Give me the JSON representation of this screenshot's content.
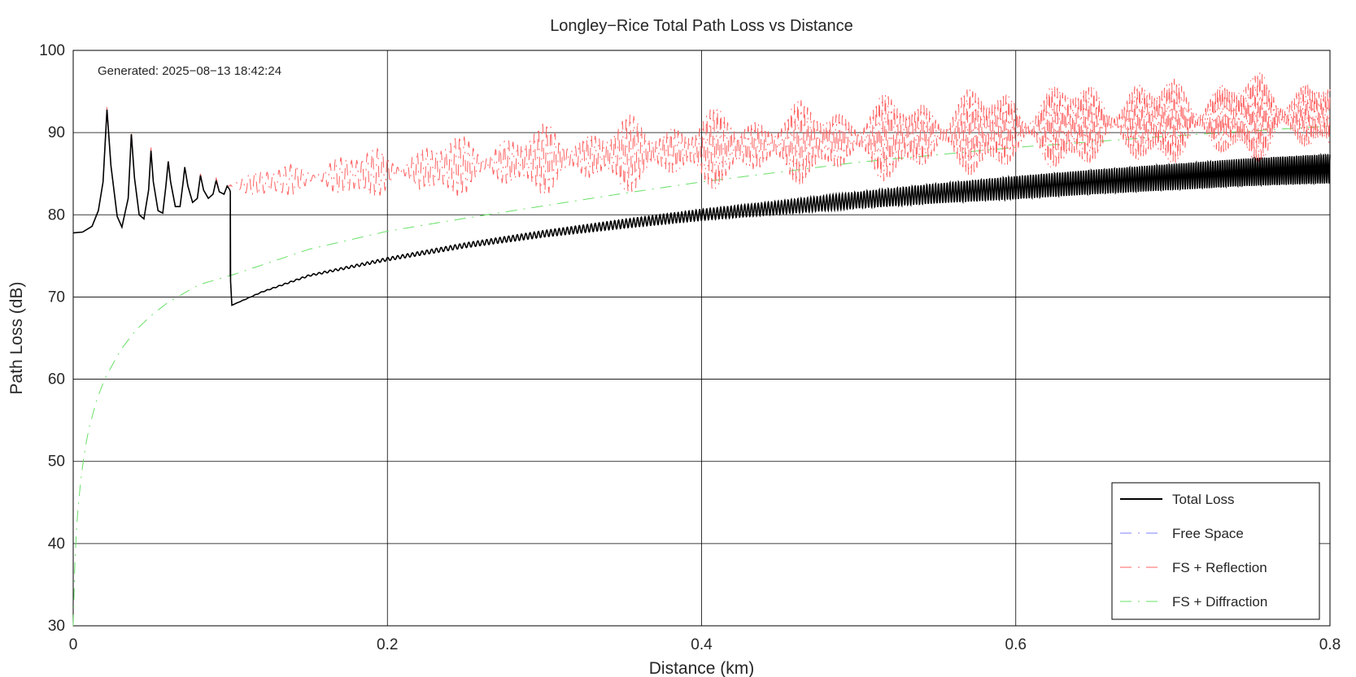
{
  "chart_data": {
    "type": "line",
    "title": "Longley−Rice Total Path Loss vs Distance",
    "xlabel": "Distance (km)",
    "ylabel": "Path Loss (dB)",
    "xlim": [
      0,
      0.8
    ],
    "ylim": [
      30,
      100
    ],
    "x_ticks": [
      0,
      0.2,
      0.4,
      0.6,
      0.8
    ],
    "x_tick_labels": [
      "0",
      "0.2",
      "0.4",
      "0.6",
      "0.8"
    ],
    "y_ticks": [
      30,
      40,
      50,
      60,
      70,
      80,
      90,
      100
    ],
    "y_tick_labels": [
      "30",
      "40",
      "50",
      "60",
      "70",
      "80",
      "90",
      "100"
    ],
    "grid": true,
    "legend_position": "bottom-right",
    "annotation": "Generated: 2025−08−13 18:42:24",
    "series": [
      {
        "name": "Total Loss",
        "color": "#000000",
        "style": "solid",
        "points": [
          [
            0,
            77.8
          ],
          [
            0.006,
            77.9
          ],
          [
            0.012,
            78.6
          ],
          [
            0.016,
            80.5
          ],
          [
            0.019,
            84
          ],
          [
            0.0215,
            92.8
          ],
          [
            0.024,
            86
          ],
          [
            0.028,
            79.8
          ],
          [
            0.031,
            78.5
          ],
          [
            0.035,
            82
          ],
          [
            0.037,
            89.8
          ],
          [
            0.039,
            84.5
          ],
          [
            0.042,
            80
          ],
          [
            0.045,
            79.5
          ],
          [
            0.048,
            83
          ],
          [
            0.0495,
            87.8
          ],
          [
            0.051,
            84
          ],
          [
            0.054,
            80.5
          ],
          [
            0.057,
            80.2
          ],
          [
            0.059,
            83.5
          ],
          [
            0.0605,
            86.5
          ],
          [
            0.062,
            84
          ],
          [
            0.065,
            81
          ],
          [
            0.068,
            81
          ],
          [
            0.07,
            84
          ],
          [
            0.071,
            85.8
          ],
          [
            0.073,
            83.5
          ],
          [
            0.076,
            81.5
          ],
          [
            0.079,
            82
          ],
          [
            0.081,
            84.8
          ],
          [
            0.083,
            83
          ],
          [
            0.086,
            82
          ],
          [
            0.089,
            82.5
          ],
          [
            0.091,
            84.2
          ],
          [
            0.093,
            82.8
          ],
          [
            0.096,
            82.5
          ],
          [
            0.098,
            83.5
          ],
          [
            0.0995,
            83.1
          ],
          [
            0.1,
            82.8
          ],
          [
            0.1,
            72.5
          ],
          [
            0.101,
            69
          ],
          [
            0.12,
            70.6
          ],
          [
            0.15,
            72.6
          ],
          [
            0.2,
            74.6
          ],
          [
            0.25,
            76.3
          ],
          [
            0.3,
            77.7
          ],
          [
            0.35,
            78.9
          ],
          [
            0.4,
            80.0
          ],
          [
            0.45,
            80.9
          ],
          [
            0.5,
            81.8
          ],
          [
            0.55,
            82.6
          ],
          [
            0.6,
            83.3
          ],
          [
            0.65,
            84.0
          ],
          [
            0.7,
            84.6
          ],
          [
            0.75,
            85.2
          ],
          [
            0.8,
            85.6
          ]
        ],
        "oscillation": [
          [
            0.1,
            0
          ],
          [
            0.3,
            0.4
          ],
          [
            0.45,
            0.8
          ],
          [
            0.5,
            1.0
          ],
          [
            0.6,
            1.4
          ],
          [
            0.7,
            1.6
          ],
          [
            0.8,
            1.8
          ]
        ]
      },
      {
        "name": "Free Space",
        "color": "#7f7fff",
        "style": "dash-dot",
        "points": []
      },
      {
        "name": "FS + Reflection",
        "color": "#ff6060",
        "style": "dash-dot",
        "points": [
          [
            0,
            77.8
          ],
          [
            0.006,
            77.9
          ],
          [
            0.012,
            78.6
          ],
          [
            0.016,
            80.5
          ],
          [
            0.019,
            84
          ],
          [
            0.0215,
            93.2
          ],
          [
            0.024,
            86
          ],
          [
            0.028,
            79.8
          ],
          [
            0.031,
            78.5
          ],
          [
            0.035,
            82
          ],
          [
            0.037,
            90.2
          ],
          [
            0.039,
            84.5
          ],
          [
            0.042,
            80
          ],
          [
            0.045,
            79.5
          ],
          [
            0.048,
            83
          ],
          [
            0.0495,
            88.2
          ],
          [
            0.051,
            84
          ],
          [
            0.054,
            80.5
          ],
          [
            0.057,
            80.2
          ],
          [
            0.059,
            83.5
          ],
          [
            0.0605,
            86.8
          ],
          [
            0.062,
            84
          ],
          [
            0.065,
            81
          ],
          [
            0.068,
            81
          ],
          [
            0.07,
            84
          ],
          [
            0.071,
            86
          ],
          [
            0.073,
            83.5
          ],
          [
            0.076,
            81.5
          ],
          [
            0.079,
            82
          ],
          [
            0.081,
            85
          ],
          [
            0.083,
            83
          ],
          [
            0.086,
            82
          ],
          [
            0.089,
            82.5
          ],
          [
            0.091,
            84.5
          ],
          [
            0.093,
            82.8
          ],
          [
            0.096,
            82.5
          ],
          [
            0.098,
            83.5
          ],
          [
            0.1,
            83.5
          ],
          [
            0.15,
            84.5
          ],
          [
            0.2,
            85.2
          ],
          [
            0.25,
            86
          ],
          [
            0.3,
            86.8
          ],
          [
            0.35,
            87.4
          ],
          [
            0.4,
            88
          ],
          [
            0.45,
            88.6
          ],
          [
            0.5,
            89.2
          ],
          [
            0.55,
            89.8
          ],
          [
            0.6,
            90.4
          ],
          [
            0.65,
            91
          ],
          [
            0.7,
            91.4
          ],
          [
            0.75,
            91.8
          ],
          [
            0.8,
            92.2
          ]
        ],
        "oscillation": [
          [
            0.1,
            1.5
          ],
          [
            0.2,
            3.5
          ],
          [
            0.3,
            4.5
          ],
          [
            0.4,
            5
          ],
          [
            0.5,
            5.5
          ],
          [
            0.6,
            6
          ],
          [
            0.7,
            6
          ],
          [
            0.8,
            6
          ]
        ]
      },
      {
        "name": "FS + Diffraction",
        "color": "#66e066",
        "style": "dash-dot",
        "points": [
          [
            0,
            30
          ],
          [
            0.001,
            37.5
          ],
          [
            0.002,
            41.7
          ],
          [
            0.004,
            46.3
          ],
          [
            0.006,
            49.5
          ],
          [
            0.008,
            52
          ],
          [
            0.01,
            54
          ],
          [
            0.015,
            57.5
          ],
          [
            0.02,
            60
          ],
          [
            0.03,
            63.5
          ],
          [
            0.04,
            66
          ],
          [
            0.05,
            67.8
          ],
          [
            0.06,
            69.3
          ],
          [
            0.08,
            71.5
          ],
          [
            0.1,
            72.6
          ],
          [
            0.15,
            75.8
          ],
          [
            0.2,
            78
          ],
          [
            0.25,
            79.6
          ],
          [
            0.3,
            81.1
          ],
          [
            0.35,
            82.6
          ],
          [
            0.4,
            84
          ],
          [
            0.45,
            85.2
          ],
          [
            0.5,
            86.4
          ],
          [
            0.55,
            87.3
          ],
          [
            0.6,
            88.2
          ],
          [
            0.65,
            88.9
          ],
          [
            0.7,
            89.6
          ],
          [
            0.75,
            90.2
          ],
          [
            0.8,
            90.8
          ]
        ]
      }
    ]
  }
}
